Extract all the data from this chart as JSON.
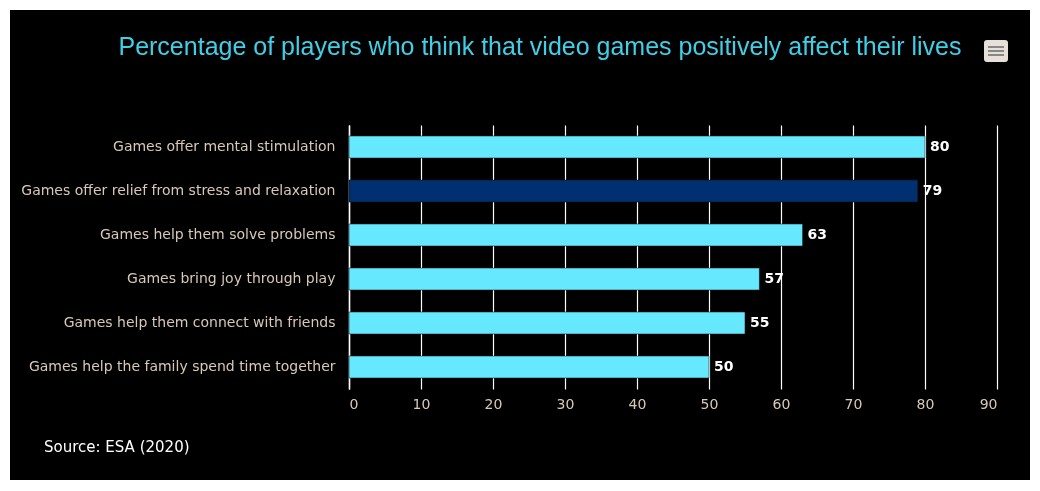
{
  "chart_data": {
    "type": "bar",
    "orientation": "horizontal",
    "title": "Percentage of players who think that video games positively affect their lives",
    "categories": [
      "Games offer mental stimulation",
      "Games offer relief from stress and relaxation",
      "Games help them solve problems",
      "Games bring joy through play",
      "Games help them connect with friends",
      "Games help the family spend time together"
    ],
    "values": [
      80,
      79,
      63,
      57,
      55,
      50
    ],
    "colors": [
      "#66e8ff",
      "#003070",
      "#66e8ff",
      "#66e8ff",
      "#66e8ff",
      "#66e8ff"
    ],
    "xlim": [
      0,
      90
    ],
    "xticks": [
      0,
      10,
      20,
      30,
      40,
      50,
      60,
      70,
      80,
      90
    ],
    "grid": "x",
    "data_labels": true,
    "annotations": [
      "Source: ESA (2020)"
    ]
  }
}
